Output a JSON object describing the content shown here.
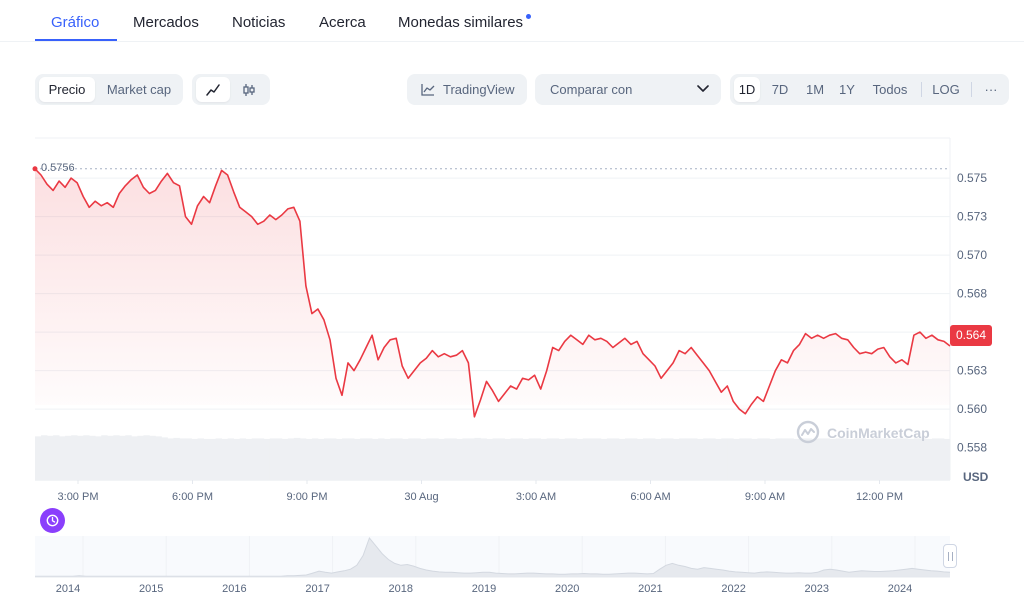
{
  "tabs": [
    {
      "label": "Gráfico",
      "active": true
    },
    {
      "label": "Mercados"
    },
    {
      "label": "Noticias"
    },
    {
      "label": "Acerca"
    },
    {
      "label": "Monedas similares"
    }
  ],
  "toolbar": {
    "metric_toggle": [
      "Precio",
      "Market cap"
    ],
    "chart_type_icons": [
      "line-chart-icon",
      "candlestick-icon"
    ],
    "tradingview_label": "TradingView",
    "compare_label": "Comparar con",
    "ranges": [
      "1D",
      "7D",
      "1M",
      "1Y",
      "Todos"
    ],
    "active_range": "1D",
    "log_label": "LOG",
    "more_label": "···"
  },
  "chart_data": {
    "type": "area",
    "title": "",
    "x_ticks": [
      "3:00 PM",
      "6:00 PM",
      "9:00 PM",
      "30 Aug",
      "3:00 AM",
      "6:00 AM",
      "9:00 AM",
      "12:00 PM"
    ],
    "y_ticks": [
      "0.575",
      "0.573",
      "0.570",
      "0.568",
      "0.565",
      "0.563",
      "0.560",
      "0.558"
    ],
    "y_tick_values": [
      0.575,
      0.5725,
      0.57,
      0.5675,
      0.565,
      0.5625,
      0.56,
      0.5575
    ],
    "ylim": [
      0.5554,
      0.5776
    ],
    "currency_label": "USD",
    "start_value_label": "0.5756",
    "start_value": 0.5756,
    "current_value_label": "0.564",
    "current_value": 0.5641,
    "line_color": "#ea3943",
    "price_series": [
      0.5756,
      0.5752,
      0.5746,
      0.5742,
      0.5748,
      0.5744,
      0.575,
      0.5747,
      0.5738,
      0.5731,
      0.5735,
      0.5732,
      0.5734,
      0.5731,
      0.574,
      0.5745,
      0.5749,
      0.5752,
      0.5744,
      0.574,
      0.5742,
      0.5748,
      0.5753,
      0.5747,
      0.5745,
      0.5725,
      0.572,
      0.5732,
      0.5738,
      0.5734,
      0.5745,
      0.5755,
      0.5752,
      0.5741,
      0.5731,
      0.5728,
      0.5725,
      0.572,
      0.5722,
      0.5726,
      0.5723,
      0.5726,
      0.573,
      0.5731,
      0.5722,
      0.568,
      0.5662,
      0.5665,
      0.5658,
      0.5645,
      0.562,
      0.5609,
      0.563,
      0.5625,
      0.5632,
      0.564,
      0.5648,
      0.5632,
      0.564,
      0.5645,
      0.5646,
      0.5628,
      0.562,
      0.5625,
      0.563,
      0.5633,
      0.5638,
      0.5634,
      0.5636,
      0.5634,
      0.5635,
      0.5638,
      0.563,
      0.5595,
      0.5606,
      0.5618,
      0.5612,
      0.5605,
      0.561,
      0.5615,
      0.5613,
      0.562,
      0.5619,
      0.5622,
      0.5613,
      0.5625,
      0.564,
      0.5638,
      0.5644,
      0.5648,
      0.5645,
      0.5642,
      0.5648,
      0.5645,
      0.5646,
      0.5644,
      0.564,
      0.5643,
      0.5646,
      0.5642,
      0.5644,
      0.5636,
      0.5632,
      0.5628,
      0.562,
      0.5625,
      0.563,
      0.5638,
      0.5636,
      0.564,
      0.5635,
      0.563,
      0.5625,
      0.5618,
      0.5611,
      0.5615,
      0.5605,
      0.56,
      0.5597,
      0.5603,
      0.5608,
      0.5605,
      0.5615,
      0.5625,
      0.5632,
      0.563,
      0.5638,
      0.5642,
      0.5649,
      0.5646,
      0.5648,
      0.5646,
      0.5648,
      0.5649,
      0.5646,
      0.5645,
      0.564,
      0.5636,
      0.5637,
      0.5636,
      0.5639,
      0.564,
      0.5634,
      0.563,
      0.5632,
      0.5629,
      0.5648,
      0.565,
      0.5646,
      0.5648,
      0.5645,
      0.5644,
      0.5641
    ],
    "volume_series": [
      0.84,
      0.86,
      0.85,
      0.86,
      0.84,
      0.85,
      0.86,
      0.85,
      0.86,
      0.85,
      0.84,
      0.86,
      0.85,
      0.86,
      0.85,
      0.86,
      0.84,
      0.85,
      0.86,
      0.85,
      0.84,
      0.82,
      0.8,
      0.81,
      0.8,
      0.8,
      0.79,
      0.8,
      0.79,
      0.79,
      0.8,
      0.79,
      0.8,
      0.79,
      0.8,
      0.79,
      0.8,
      0.8,
      0.79,
      0.8,
      0.8,
      0.79,
      0.8,
      0.81,
      0.8,
      0.79,
      0.8,
      0.79,
      0.8,
      0.8,
      0.79,
      0.8,
      0.8,
      0.79,
      0.8,
      0.8,
      0.79,
      0.8,
      0.79,
      0.8,
      0.8,
      0.79,
      0.8,
      0.8,
      0.79,
      0.8,
      0.8,
      0.79,
      0.8,
      0.8,
      0.79,
      0.8,
      0.8,
      0.81,
      0.8,
      0.79,
      0.8,
      0.8,
      0.79,
      0.8,
      0.8,
      0.79,
      0.8,
      0.8,
      0.79,
      0.8,
      0.8,
      0.79,
      0.8,
      0.8,
      0.79,
      0.8,
      0.8,
      0.8,
      0.79,
      0.8,
      0.8,
      0.79,
      0.8,
      0.8,
      0.79,
      0.8,
      0.8,
      0.79,
      0.8,
      0.8,
      0.79,
      0.8,
      0.8,
      0.8,
      0.79,
      0.8,
      0.8,
      0.79,
      0.8,
      0.8,
      0.79,
      0.8,
      0.8,
      0.79,
      0.8,
      0.8,
      0.79,
      0.8,
      0.8,
      0.8,
      0.79,
      0.8,
      0.8,
      0.79,
      0.8,
      0.8,
      0.79,
      0.8,
      0.8,
      0.79,
      0.8,
      0.8,
      0.79,
      0.8,
      0.8,
      0.8,
      0.79,
      0.8,
      0.8,
      0.79,
      0.8,
      0.8,
      0.79,
      0.8,
      0.8,
      0.79
    ]
  },
  "navigator": {
    "years": [
      "2014",
      "2015",
      "2016",
      "2017",
      "2018",
      "2019",
      "2020",
      "2021",
      "2022",
      "2023",
      "2024"
    ],
    "history_series": [
      0.02,
      0.02,
      0.02,
      0.02,
      0.02,
      0.02,
      0.02,
      0.03,
      0.02,
      0.02,
      0.02,
      0.02,
      0.02,
      0.02,
      0.02,
      0.02,
      0.02,
      0.02,
      0.02,
      0.02,
      0.02,
      0.02,
      0.02,
      0.02,
      0.02,
      0.02,
      0.02,
      0.02,
      0.02,
      0.02,
      0.02,
      0.02,
      0.02,
      0.02,
      0.02,
      0.02,
      0.02,
      0.02,
      0.02,
      0.02,
      0.03,
      0.03,
      0.04,
      0.05,
      0.1,
      0.15,
      0.12,
      0.1,
      0.13,
      0.16,
      0.2,
      0.3,
      0.55,
      1.0,
      0.8,
      0.6,
      0.45,
      0.35,
      0.3,
      0.32,
      0.28,
      0.22,
      0.18,
      0.15,
      0.13,
      0.12,
      0.12,
      0.11,
      0.1,
      0.1,
      0.11,
      0.12,
      0.12,
      0.1,
      0.09,
      0.08,
      0.08,
      0.09,
      0.1,
      0.1,
      0.09,
      0.08,
      0.08,
      0.07,
      0.07,
      0.08,
      0.08,
      0.09,
      0.08,
      0.08,
      0.07,
      0.07,
      0.08,
      0.09,
      0.1,
      0.1,
      0.09,
      0.08,
      0.09,
      0.2,
      0.3,
      0.35,
      0.3,
      0.27,
      0.22,
      0.2,
      0.24,
      0.22,
      0.2,
      0.18,
      0.15,
      0.13,
      0.12,
      0.11,
      0.1,
      0.12,
      0.13,
      0.12,
      0.11,
      0.1,
      0.1,
      0.11,
      0.1,
      0.1,
      0.12,
      0.18,
      0.2,
      0.18,
      0.15,
      0.12,
      0.14,
      0.16,
      0.15,
      0.14,
      0.14,
      0.15,
      0.16,
      0.18,
      0.2,
      0.22,
      0.2,
      0.18,
      0.16,
      0.15,
      0.13,
      0.12
    ]
  },
  "watermark": {
    "text": "CoinMarketCap"
  }
}
